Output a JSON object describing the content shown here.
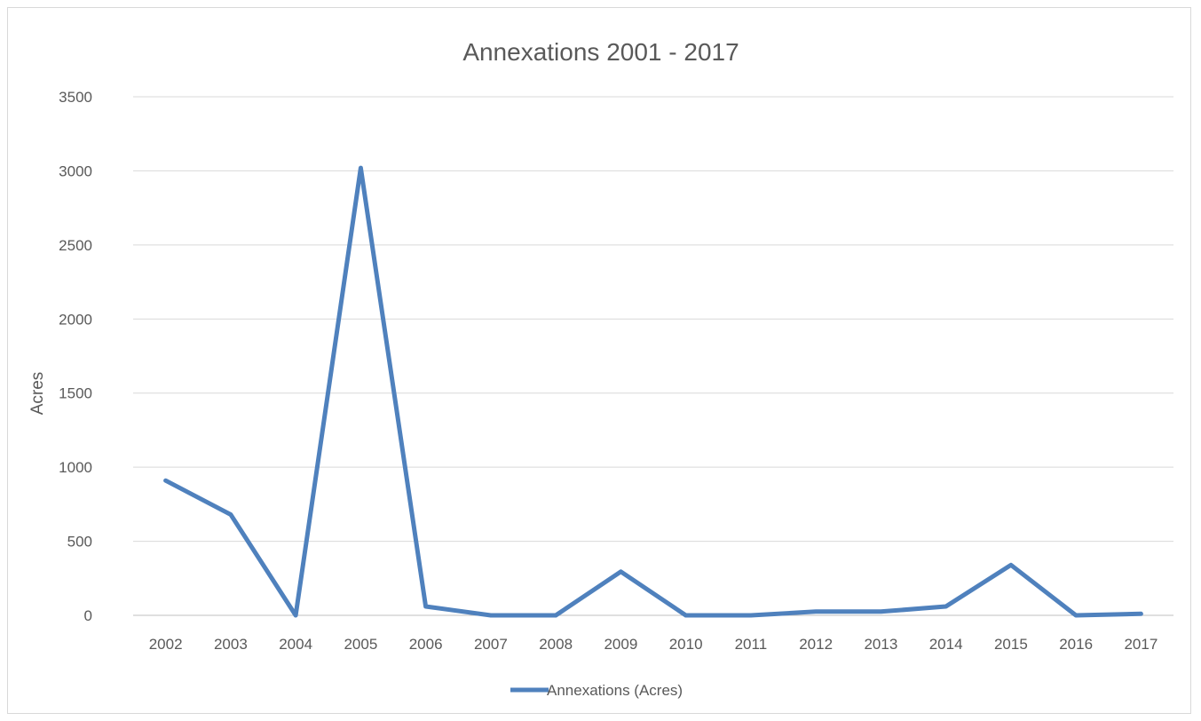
{
  "chart_data": {
    "type": "line",
    "title": "Annexations 2001 - 2017",
    "xlabel": "",
    "ylabel": "Acres",
    "categories": [
      "2002",
      "2003",
      "2004",
      "2005",
      "2006",
      "2007",
      "2008",
      "2009",
      "2010",
      "2011",
      "2012",
      "2013",
      "2014",
      "2015",
      "2016",
      "2017"
    ],
    "series": [
      {
        "name": "Annexations (Acres)",
        "color": "#4f81bd",
        "values": [
          910,
          680,
          0,
          3020,
          60,
          0,
          0,
          295,
          0,
          0,
          25,
          25,
          60,
          340,
          0,
          10
        ]
      }
    ],
    "ylim": [
      0,
      3500
    ],
    "yticks": [
      0,
      500,
      1000,
      1500,
      2000,
      2500,
      3000,
      3500
    ],
    "grid": true,
    "legend_position": "bottom"
  }
}
